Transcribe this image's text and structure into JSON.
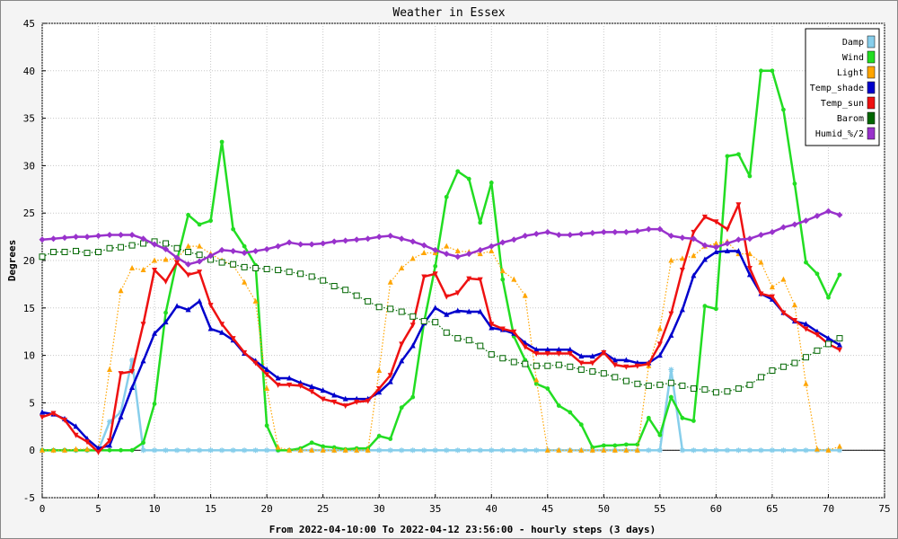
{
  "chart_data": {
    "type": "line",
    "title": "Weather in Essex",
    "xlabel": "From 2022-04-10:00 To 2022-04-12 23:56:00 - hourly steps (3 days)",
    "ylabel": "Degrees",
    "xlim": [
      0,
      75
    ],
    "ylim": [
      -5,
      45
    ],
    "xticks": [
      0,
      5,
      10,
      15,
      20,
      25,
      30,
      35,
      40,
      45,
      50,
      55,
      60,
      65,
      70,
      75
    ],
    "yticks": [
      -5,
      0,
      5,
      10,
      15,
      20,
      25,
      30,
      35,
      40,
      45
    ],
    "grid": true,
    "legend_position": "top-right",
    "x": [
      0,
      1,
      2,
      3,
      4,
      5,
      6,
      7,
      8,
      9,
      10,
      11,
      12,
      13,
      14,
      15,
      16,
      17,
      18,
      19,
      20,
      21,
      22,
      23,
      24,
      25,
      26,
      27,
      28,
      29,
      30,
      31,
      32,
      33,
      34,
      35,
      36,
      37,
      38,
      39,
      40,
      41,
      42,
      43,
      44,
      45,
      46,
      47,
      48,
      49,
      50,
      51,
      52,
      53,
      54,
      55,
      56,
      57,
      58,
      59,
      60,
      61,
      62,
      63,
      64,
      65,
      66,
      67,
      68,
      69,
      70,
      71
    ],
    "series": [
      {
        "name": "Damp",
        "color": "#87ceeb",
        "values": [
          0,
          0,
          0,
          0,
          0,
          0,
          3,
          4,
          9.5,
          0,
          0,
          0,
          0,
          0,
          0,
          0,
          0,
          0,
          0,
          0,
          0,
          0,
          0,
          0,
          0,
          0,
          0,
          0,
          0,
          0,
          0,
          0,
          0,
          0,
          0,
          0,
          0,
          0,
          0,
          0,
          0,
          0,
          0,
          0,
          0,
          0,
          0,
          0,
          0,
          0,
          0,
          0,
          0,
          0,
          0,
          0,
          8.5,
          0,
          0,
          0,
          0,
          0,
          0,
          0,
          0,
          0,
          0,
          0,
          0,
          0,
          0,
          0
        ]
      },
      {
        "name": "Wind",
        "color": "#22dd22",
        "values": [
          0,
          0,
          0,
          0,
          0,
          0,
          0,
          0,
          0,
          0.8,
          4.9,
          14.5,
          20,
          24.8,
          23.8,
          24.2,
          32.5,
          23.3,
          21.5,
          19.5,
          2.6,
          0,
          0,
          0.2,
          0.8,
          0.4,
          0.3,
          0.1,
          0.2,
          0.2,
          1.5,
          1.2,
          4.5,
          5.6,
          13.5,
          19.4,
          26.7,
          29.4,
          28.6,
          24.0,
          28.2,
          18.0,
          12.0,
          9.5,
          7.0,
          6.5,
          4.7,
          4.0,
          2.7,
          0.3,
          0.5,
          0.5,
          0.6,
          0.6,
          3.4,
          1.6,
          5.6,
          3.4,
          3.1,
          15.2,
          14.9,
          31.0,
          31.2,
          28.9,
          40.0,
          40.0,
          35.9,
          28.1,
          19.8,
          18.6,
          16.1,
          18.5
        ]
      },
      {
        "name": "Light",
        "color": "#ffa500",
        "values": [
          0,
          0,
          0,
          0.1,
          0.1,
          0.1,
          8.5,
          16.8,
          19.2,
          19.0,
          20.0,
          20.1,
          20.2,
          21.5,
          21.5,
          20.7,
          20.0,
          19.5,
          17.7,
          15.7,
          6.5,
          0.3,
          0,
          0,
          0,
          0,
          0,
          0,
          0,
          0,
          8.4,
          17.7,
          19.2,
          20.2,
          20.8,
          20.8,
          21.5,
          21.0,
          20.9,
          20.7,
          21.0,
          18.9,
          18.0,
          16.3,
          7.4,
          0,
          0,
          0,
          0,
          0,
          0,
          0,
          0,
          0,
          8.9,
          12.8,
          20.0,
          20.2,
          20.5,
          21.5,
          21.8,
          22.0,
          20.7,
          20.7,
          19.8,
          17.2,
          18.0,
          15.3,
          7.0,
          0.1,
          0,
          0.4
        ]
      },
      {
        "name": "Temp_shade",
        "color": "#0000cc",
        "values": [
          4.0,
          3.8,
          3.3,
          2.5,
          1.2,
          0.2,
          0.5,
          3.5,
          6.6,
          9.4,
          12.3,
          13.5,
          15.2,
          14.8,
          15.7,
          12.8,
          12.4,
          11.6,
          10.2,
          9.4,
          8.5,
          7.6,
          7.6,
          7.1,
          6.7,
          6.3,
          5.8,
          5.4,
          5.4,
          5.4,
          6.1,
          7.2,
          9.4,
          11.0,
          13.4,
          15.0,
          14.3,
          14.7,
          14.6,
          14.6,
          12.9,
          12.7,
          12.3,
          11.3,
          10.6,
          10.6,
          10.6,
          10.6,
          9.9,
          9.9,
          10.3,
          9.5,
          9.5,
          9.2,
          9.2,
          10.0,
          12.1,
          14.8,
          18.4,
          20.1,
          20.9,
          21.0,
          21.0,
          18.5,
          16.5,
          15.9,
          14.5,
          13.6,
          13.3,
          12.5,
          11.8,
          11.1
        ]
      },
      {
        "name": "Temp_sun",
        "color": "#ee1111",
        "values": [
          3.5,
          3.9,
          3.2,
          1.6,
          0.9,
          -0.2,
          1.0,
          8.1,
          8.3,
          13.3,
          19.0,
          17.8,
          19.8,
          18.5,
          18.8,
          15.3,
          13.3,
          11.8,
          10.3,
          9.2,
          8.0,
          6.9,
          6.9,
          6.8,
          6.2,
          5.4,
          5.1,
          4.7,
          5.1,
          5.2,
          6.5,
          7.9,
          11.2,
          13.2,
          18.3,
          18.6,
          16.2,
          16.6,
          18.1,
          18.0,
          13.3,
          12.8,
          12.5,
          10.9,
          10.2,
          10.2,
          10.2,
          10.2,
          9.2,
          9.2,
          10.3,
          9.0,
          8.8,
          8.9,
          9.1,
          11.2,
          14.4,
          19.0,
          23.0,
          24.6,
          24.1,
          23.3,
          25.9,
          19.2,
          16.5,
          16.2,
          14.5,
          13.7,
          12.8,
          12.2,
          11.2,
          10.6
        ]
      },
      {
        "name": "Barom",
        "color": "#006600",
        "values": [
          20.4,
          20.9,
          20.9,
          21.0,
          20.8,
          20.9,
          21.3,
          21.4,
          21.6,
          21.8,
          22.0,
          21.8,
          21.3,
          20.9,
          20.6,
          20.1,
          19.8,
          19.6,
          19.3,
          19.2,
          19.1,
          19.0,
          18.8,
          18.6,
          18.3,
          17.9,
          17.3,
          16.9,
          16.3,
          15.7,
          15.1,
          14.9,
          14.6,
          14.1,
          13.6,
          13.5,
          12.4,
          11.8,
          11.6,
          11.0,
          10.1,
          9.7,
          9.3,
          9.1,
          8.9,
          8.9,
          9.0,
          8.8,
          8.5,
          8.3,
          8.1,
          7.7,
          7.3,
          7.0,
          6.8,
          6.9,
          7.1,
          6.8,
          6.5,
          6.4,
          6.1,
          6.2,
          6.5,
          6.9,
          7.7,
          8.4,
          8.8,
          9.2,
          9.8,
          10.5,
          11.2,
          11.8
        ]
      },
      {
        "name": "Humid_%/2",
        "color": "#9932cc",
        "values": [
          22.2,
          22.3,
          22.4,
          22.5,
          22.5,
          22.6,
          22.7,
          22.7,
          22.7,
          22.3,
          21.7,
          21.2,
          20.3,
          19.6,
          19.9,
          20.5,
          21.1,
          21.0,
          20.8,
          21.0,
          21.2,
          21.5,
          21.9,
          21.7,
          21.7,
          21.8,
          22.0,
          22.1,
          22.2,
          22.3,
          22.5,
          22.6,
          22.3,
          22.0,
          21.6,
          21.1,
          20.7,
          20.4,
          20.7,
          21.1,
          21.5,
          21.9,
          22.2,
          22.6,
          22.8,
          23.0,
          22.7,
          22.7,
          22.8,
          22.9,
          23.0,
          23.0,
          23.0,
          23.1,
          23.3,
          23.3,
          22.6,
          22.4,
          22.3,
          21.6,
          21.4,
          21.8,
          22.2,
          22.3,
          22.7,
          23.0,
          23.5,
          23.8,
          24.2,
          24.7,
          25.2,
          24.8
        ]
      }
    ]
  }
}
